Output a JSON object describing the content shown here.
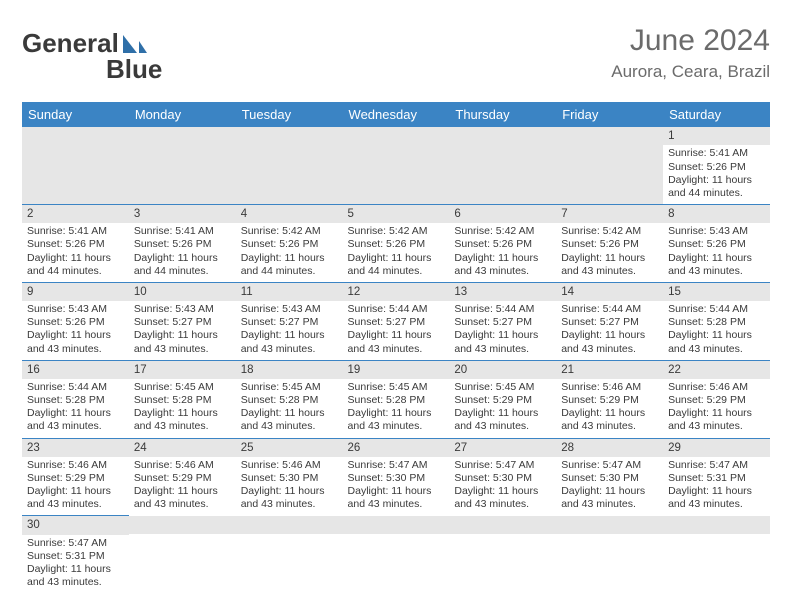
{
  "logo": {
    "part1": "General",
    "part2": "Blue",
    "sail_color": "#2f6fa8"
  },
  "title": "June 2024",
  "subtitle": "Aurora, Ceara, Brazil",
  "colors": {
    "header_bg": "#3b84c4",
    "header_fg": "#ffffff",
    "rule": "#3b84c4",
    "daynum_bg": "#e6e6e6",
    "text": "#3a3a3a"
  },
  "weekdays": [
    "Sunday",
    "Monday",
    "Tuesday",
    "Wednesday",
    "Thursday",
    "Friday",
    "Saturday"
  ],
  "weeks": [
    [
      {
        "empty": true
      },
      {
        "empty": true
      },
      {
        "empty": true
      },
      {
        "empty": true
      },
      {
        "empty": true
      },
      {
        "empty": true
      },
      {
        "n": "1",
        "sunrise": "5:41 AM",
        "sunset": "5:26 PM",
        "daylight": "11 hours and 44 minutes."
      }
    ],
    [
      {
        "n": "2",
        "sunrise": "5:41 AM",
        "sunset": "5:26 PM",
        "daylight": "11 hours and 44 minutes."
      },
      {
        "n": "3",
        "sunrise": "5:41 AM",
        "sunset": "5:26 PM",
        "daylight": "11 hours and 44 minutes."
      },
      {
        "n": "4",
        "sunrise": "5:42 AM",
        "sunset": "5:26 PM",
        "daylight": "11 hours and 44 minutes."
      },
      {
        "n": "5",
        "sunrise": "5:42 AM",
        "sunset": "5:26 PM",
        "daylight": "11 hours and 44 minutes."
      },
      {
        "n": "6",
        "sunrise": "5:42 AM",
        "sunset": "5:26 PM",
        "daylight": "11 hours and 43 minutes."
      },
      {
        "n": "7",
        "sunrise": "5:42 AM",
        "sunset": "5:26 PM",
        "daylight": "11 hours and 43 minutes."
      },
      {
        "n": "8",
        "sunrise": "5:43 AM",
        "sunset": "5:26 PM",
        "daylight": "11 hours and 43 minutes."
      }
    ],
    [
      {
        "n": "9",
        "sunrise": "5:43 AM",
        "sunset": "5:26 PM",
        "daylight": "11 hours and 43 minutes."
      },
      {
        "n": "10",
        "sunrise": "5:43 AM",
        "sunset": "5:27 PM",
        "daylight": "11 hours and 43 minutes."
      },
      {
        "n": "11",
        "sunrise": "5:43 AM",
        "sunset": "5:27 PM",
        "daylight": "11 hours and 43 minutes."
      },
      {
        "n": "12",
        "sunrise": "5:44 AM",
        "sunset": "5:27 PM",
        "daylight": "11 hours and 43 minutes."
      },
      {
        "n": "13",
        "sunrise": "5:44 AM",
        "sunset": "5:27 PM",
        "daylight": "11 hours and 43 minutes."
      },
      {
        "n": "14",
        "sunrise": "5:44 AM",
        "sunset": "5:27 PM",
        "daylight": "11 hours and 43 minutes."
      },
      {
        "n": "15",
        "sunrise": "5:44 AM",
        "sunset": "5:28 PM",
        "daylight": "11 hours and 43 minutes."
      }
    ],
    [
      {
        "n": "16",
        "sunrise": "5:44 AM",
        "sunset": "5:28 PM",
        "daylight": "11 hours and 43 minutes."
      },
      {
        "n": "17",
        "sunrise": "5:45 AM",
        "sunset": "5:28 PM",
        "daylight": "11 hours and 43 minutes."
      },
      {
        "n": "18",
        "sunrise": "5:45 AM",
        "sunset": "5:28 PM",
        "daylight": "11 hours and 43 minutes."
      },
      {
        "n": "19",
        "sunrise": "5:45 AM",
        "sunset": "5:28 PM",
        "daylight": "11 hours and 43 minutes."
      },
      {
        "n": "20",
        "sunrise": "5:45 AM",
        "sunset": "5:29 PM",
        "daylight": "11 hours and 43 minutes."
      },
      {
        "n": "21",
        "sunrise": "5:46 AM",
        "sunset": "5:29 PM",
        "daylight": "11 hours and 43 minutes."
      },
      {
        "n": "22",
        "sunrise": "5:46 AM",
        "sunset": "5:29 PM",
        "daylight": "11 hours and 43 minutes."
      }
    ],
    [
      {
        "n": "23",
        "sunrise": "5:46 AM",
        "sunset": "5:29 PM",
        "daylight": "11 hours and 43 minutes."
      },
      {
        "n": "24",
        "sunrise": "5:46 AM",
        "sunset": "5:29 PM",
        "daylight": "11 hours and 43 minutes."
      },
      {
        "n": "25",
        "sunrise": "5:46 AM",
        "sunset": "5:30 PM",
        "daylight": "11 hours and 43 minutes."
      },
      {
        "n": "26",
        "sunrise": "5:47 AM",
        "sunset": "5:30 PM",
        "daylight": "11 hours and 43 minutes."
      },
      {
        "n": "27",
        "sunrise": "5:47 AM",
        "sunset": "5:30 PM",
        "daylight": "11 hours and 43 minutes."
      },
      {
        "n": "28",
        "sunrise": "5:47 AM",
        "sunset": "5:30 PM",
        "daylight": "11 hours and 43 minutes."
      },
      {
        "n": "29",
        "sunrise": "5:47 AM",
        "sunset": "5:31 PM",
        "daylight": "11 hours and 43 minutes."
      }
    ],
    [
      {
        "n": "30",
        "sunrise": "5:47 AM",
        "sunset": "5:31 PM",
        "daylight": "11 hours and 43 minutes."
      },
      {
        "empty": true
      },
      {
        "empty": true
      },
      {
        "empty": true
      },
      {
        "empty": true
      },
      {
        "empty": true
      },
      {
        "empty": true
      }
    ]
  ],
  "labels": {
    "sunrise": "Sunrise:",
    "sunset": "Sunset:",
    "daylight": "Daylight:"
  }
}
